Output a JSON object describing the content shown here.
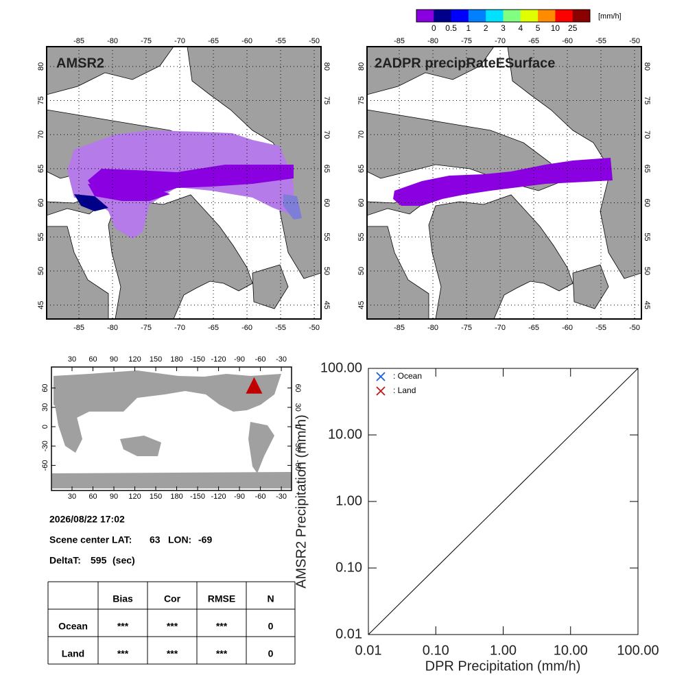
{
  "colorbar": {
    "unit": "[mm/h]",
    "labels": [
      0,
      0.5,
      1,
      2,
      3,
      4,
      5,
      10,
      25
    ],
    "colors": [
      "#8a00e0",
      "#00008b",
      "#0000ff",
      "#0080ff",
      "#00e0ff",
      "#80ff80",
      "#e0ff00",
      "#ff8c00",
      "#ff0000",
      "#8b0000"
    ]
  },
  "maps": [
    {
      "title": "AMSR2",
      "xticks": [
        -85,
        -80,
        -75,
        -70,
        -65,
        -60,
        -55,
        -50
      ],
      "yticks": [
        45,
        50,
        55,
        60,
        65,
        70,
        75,
        80
      ]
    },
    {
      "title": "2ADPR precipRateESurface",
      "xticks": [
        -85,
        -80,
        -75,
        -70,
        -65,
        -60,
        -55,
        -50
      ],
      "yticks": [
        45,
        50,
        55,
        60,
        65,
        70,
        75,
        80
      ]
    }
  ],
  "world_map": {
    "xticks": [
      30,
      60,
      90,
      120,
      150,
      180,
      -150,
      -120,
      -90,
      -60,
      -30
    ],
    "yticks": [
      -60,
      -30,
      0,
      30,
      60
    ]
  },
  "info": {
    "datetime": "2026/08/22 17:02",
    "lat_label": "Scene center LAT:",
    "lat": 63,
    "lon_label": "LON:",
    "lon": -69,
    "delta_label": "DeltaT:",
    "delta": 595,
    "delta_unit": "(sec)"
  },
  "table": {
    "header": [
      "Bias",
      "Cor",
      "RMSE",
      "N"
    ],
    "rows": [
      {
        "label": "Ocean",
        "cells": [
          "***",
          "***",
          "***",
          "0"
        ]
      },
      {
        "label": "Land",
        "cells": [
          "***",
          "***",
          "***",
          "0"
        ]
      }
    ]
  },
  "chart_data": {
    "type": "scatter",
    "xlabel": "DPR Precipitation (mm/h)",
    "ylabel": "AMSR2 Precipitation (mm/h)",
    "log_scale": true,
    "xlim": [
      0.01,
      100
    ],
    "ylim": [
      0.01,
      100
    ],
    "xticks": [
      {
        "value": 0.01,
        "label": "0.01"
      },
      {
        "value": 0.1,
        "label": "0.10"
      },
      {
        "value": 1,
        "label": "1.00"
      },
      {
        "value": 10,
        "label": "10.00"
      },
      {
        "value": 100,
        "label": "100.00"
      }
    ],
    "yticks": [
      {
        "value": 0.01,
        "label": "0.01"
      },
      {
        "value": 0.1,
        "label": "0.10"
      },
      {
        "value": 1,
        "label": "1.00"
      },
      {
        "value": 10,
        "label": "10.00"
      },
      {
        "value": 100,
        "label": "100.00"
      }
    ],
    "series": [
      {
        "name": ": Ocean",
        "color": "#1a5fd6",
        "x": [],
        "values": []
      },
      {
        "name": ": Land",
        "color": "#c01818",
        "x": [],
        "values": []
      }
    ]
  }
}
